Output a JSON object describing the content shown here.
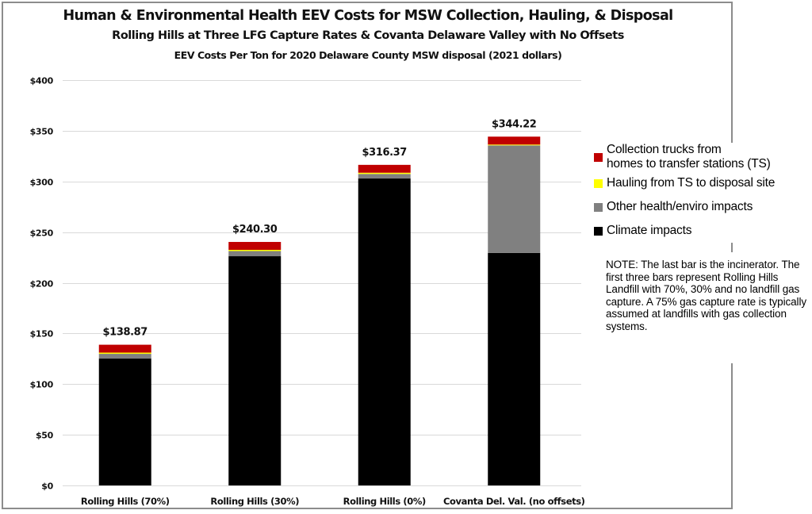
{
  "chart_data": {
    "type": "bar",
    "stacked": true,
    "title": "Human & Environmental Health EEV Costs for MSW Collection, Hauling, & Disposal",
    "subtitle": "Rolling Hills at Three LFG Capture Rates & Covanta Delaware Valley with No Offsets",
    "subtitle2": "EEV Costs Per Ton for 2020 Delaware County MSW disposal (2021 dollars)",
    "xlabel": "",
    "ylabel": "",
    "categories": [
      "Rolling Hills (70%)",
      "Rolling Hills (30%)",
      "Rolling Hills (0%)",
      "Covanta Del. Val. (no offsets)"
    ],
    "series": [
      {
        "name": "Climate impacts",
        "color": "#000000",
        "values": [
          125.2,
          226.2,
          302.9,
          229.5
        ]
      },
      {
        "name": "Other health/enviro impacts",
        "color": "#808080",
        "values": [
          4.7,
          5.1,
          4.5,
          106.1
        ]
      },
      {
        "name": "Hauling from TS to disposal site",
        "color": "#FFFF00",
        "values": [
          1.2,
          1.2,
          1.2,
          0.8
        ]
      },
      {
        "name": "Collection trucks from homes to transfer stations (TS)",
        "color": "#C00000",
        "values": [
          7.77,
          7.8,
          7.77,
          7.82
        ]
      }
    ],
    "totals": [
      138.87,
      240.3,
      316.37,
      344.22
    ],
    "total_labels": [
      "$138.87",
      "$240.30",
      "$316.37",
      "$344.22"
    ],
    "ylim": [
      0,
      400
    ],
    "yticks": [
      0,
      50,
      100,
      150,
      200,
      250,
      300,
      350,
      400
    ],
    "ytick_labels": [
      "$0",
      "$50",
      "$100",
      "$150",
      "$200",
      "$250",
      "$300",
      "$350",
      "$400"
    ],
    "grid": true,
    "legend_position": "right",
    "legend": [
      {
        "label": "Collection trucks from homes to transfer stations (TS)",
        "line1": "Collection trucks from",
        "line2": "homes to transfer stations (TS)",
        "color": "#C00000"
      },
      {
        "label": "Hauling from TS to disposal site",
        "color": "#FFFF00"
      },
      {
        "label": "Other health/enviro impacts",
        "color": "#808080"
      },
      {
        "label": "Climate impacts",
        "color": "#000000"
      }
    ],
    "annotation": "NOTE: The last bar is the incinerator.  The first three bars represent Rolling Hills Landfill with 70%, 30% and no landfill gas capture.  A 75% gas capture rate is typically assumed at landfills with gas collection systems."
  }
}
